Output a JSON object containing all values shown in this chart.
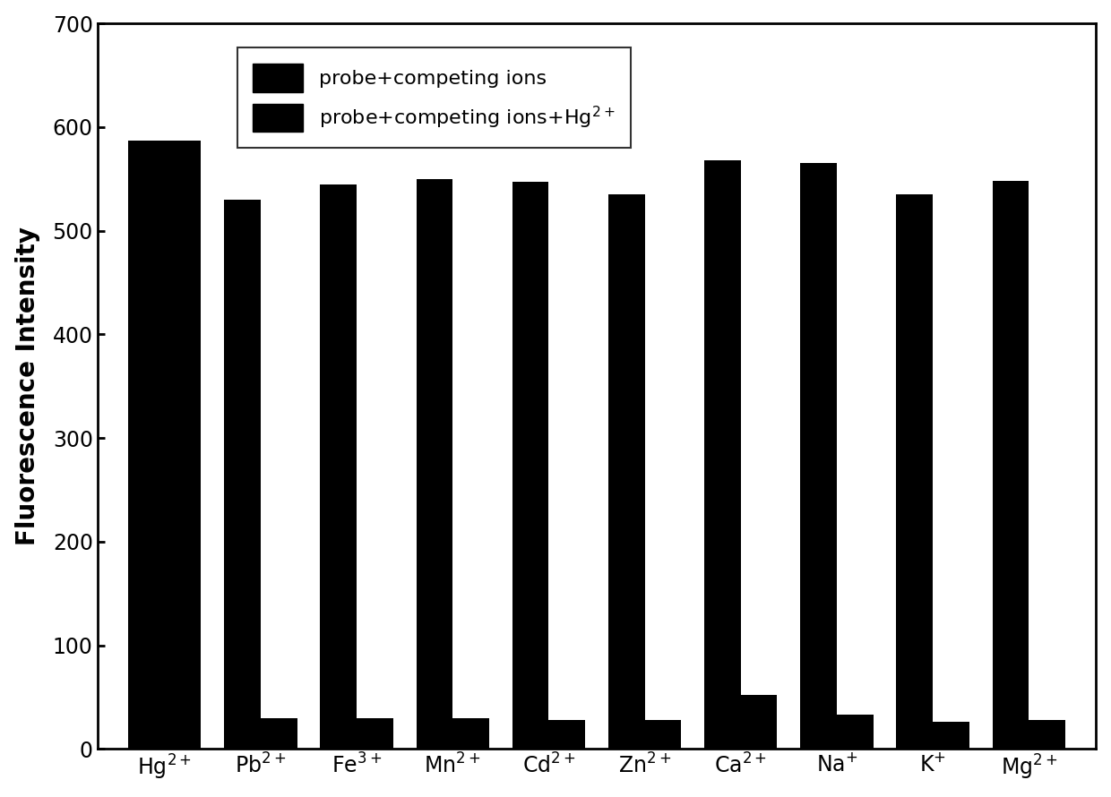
{
  "categories": [
    {
      "label": "Hg",
      "superscript": "2+"
    },
    {
      "label": "Pb",
      "superscript": "2+"
    },
    {
      "label": "Fe",
      "superscript": "3+"
    },
    {
      "label": "Mn",
      "superscript": "2+"
    },
    {
      "label": "Cd",
      "superscript": "2+"
    },
    {
      "label": "Zn",
      "superscript": "2+"
    },
    {
      "label": "Ca",
      "superscript": "2+"
    },
    {
      "label": "Na",
      "superscript": "+"
    },
    {
      "label": "K",
      "superscript": "+"
    },
    {
      "label": "Mg",
      "superscript": "2+"
    }
  ],
  "bar1_values": [
    587,
    530,
    545,
    550,
    547,
    535,
    568,
    565,
    535,
    548
  ],
  "bar2_values": [
    587,
    30,
    30,
    30,
    28,
    28,
    52,
    33,
    26,
    28
  ],
  "bar_color": "#000000",
  "bar_width": 0.38,
  "ylabel": "Fluorescence Intensity",
  "ylim": [
    0,
    700
  ],
  "yticks": [
    0,
    100,
    200,
    300,
    400,
    500,
    600,
    700
  ],
  "legend1": "probe+competing ions",
  "legend2_prefix": "probe+competing ions+Hg",
  "legend2_superscript": "2+",
  "background_color": "#ffffff",
  "tick_fontsize": 17,
  "label_fontsize": 20,
  "legend_fontsize": 16
}
